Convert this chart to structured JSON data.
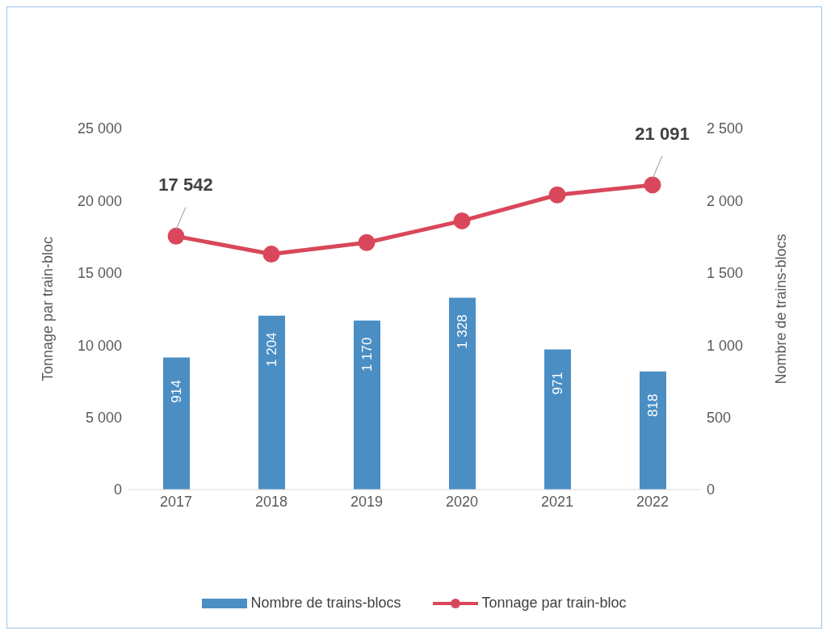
{
  "chart_data": {
    "type": "bar",
    "categories": [
      "2017",
      "2018",
      "2019",
      "2020",
      "2021",
      "2022"
    ],
    "ylabel": "Tonnage par train-bloc",
    "y2label": "Nombre de trains-blocs",
    "ylim": [
      0,
      25000
    ],
    "yticks": [
      {
        "value": 0,
        "label": "0"
      },
      {
        "value": 5000,
        "label": "5 000"
      },
      {
        "value": 10000,
        "label": "10 000"
      },
      {
        "value": 15000,
        "label": "15 000"
      },
      {
        "value": 20000,
        "label": "20 000"
      },
      {
        "value": 25000,
        "label": "25 000"
      }
    ],
    "y2lim": [
      0,
      2500
    ],
    "y2ticks": [
      {
        "value": 0,
        "label": "0"
      },
      {
        "value": 500,
        "label": "500"
      },
      {
        "value": 1000,
        "label": "1 000"
      },
      {
        "value": 1500,
        "label": "1 500"
      },
      {
        "value": 2000,
        "label": "2 000"
      },
      {
        "value": 2500,
        "label": "2 500"
      }
    ],
    "series": [
      {
        "name": "Nombre de trains-blocs",
        "axis": "y2",
        "color": "#4a8ec4",
        "values": [
          914,
          1204,
          1170,
          1328,
          971,
          818
        ],
        "value_labels": [
          "914",
          "1 204",
          "1 170",
          "1 328",
          "971",
          "818"
        ]
      },
      {
        "name": "Tonnage par train-bloc",
        "type": "line",
        "color": "#d9475a",
        "marker": "circle",
        "values": [
          17542,
          16300,
          17100,
          18600,
          20400,
          21091
        ],
        "value_labels": [
          "17 542",
          null,
          null,
          null,
          null,
          "21 091"
        ]
      }
    ],
    "legend": "bottom"
  }
}
